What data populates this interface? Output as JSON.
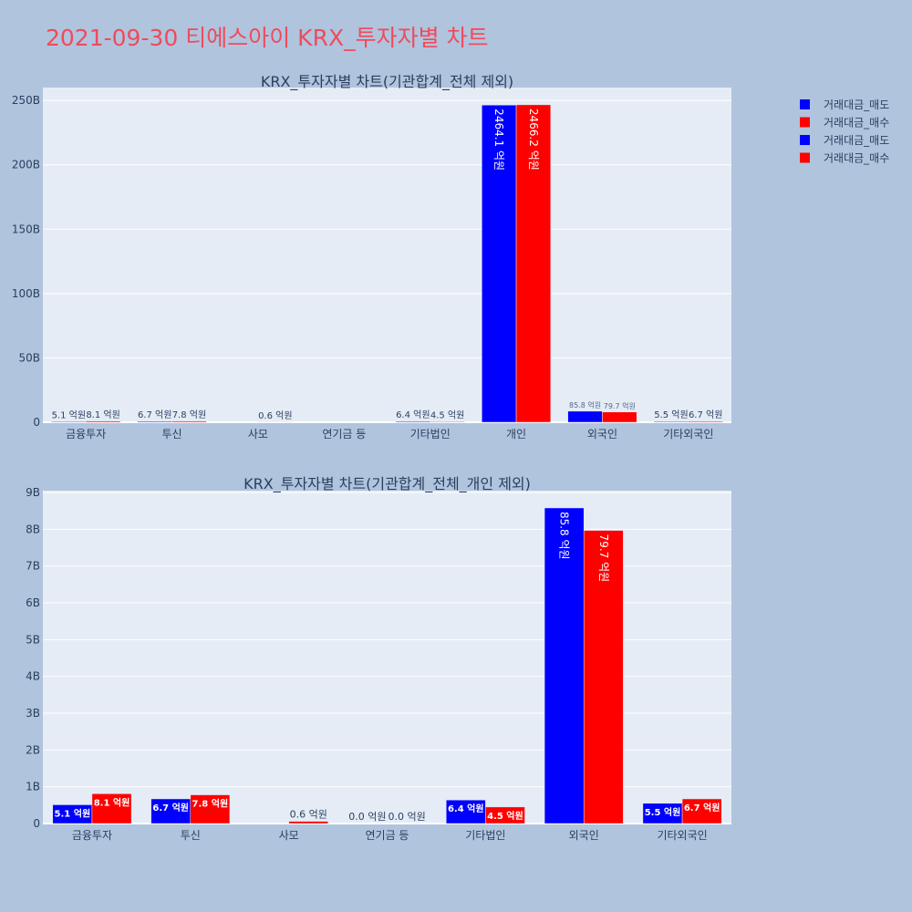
{
  "page": {
    "title": "2021-09-30 티에스아이 KRX_투자자별 차트"
  },
  "legend": {
    "placement": "top-right",
    "items": [
      {
        "label": "거래대금_매도",
        "color": "#0000ff"
      },
      {
        "label": "거래대금_매수",
        "color": "#ff0000"
      },
      {
        "label": "거래대금_매도",
        "color": "#0000ff"
      },
      {
        "label": "거래대금_매수",
        "color": "#ff0000"
      }
    ]
  },
  "chart_data": [
    {
      "type": "bar",
      "title": "KRX_투자자별 차트(기관합계_전체 제외)",
      "categories": [
        "금융투자",
        "투신",
        "사모",
        "연기금 등",
        "기타법인",
        "개인",
        "외국인",
        "기타외국인"
      ],
      "ylim": [
        0,
        260
      ],
      "yticks": [
        0,
        50,
        100,
        150,
        200,
        250
      ],
      "ytick_labels": [
        "0",
        "50B",
        "100B",
        "150B",
        "200B",
        "250B"
      ],
      "grid": true,
      "series": [
        {
          "name": "거래대금_매도",
          "color": "#0000ff",
          "values": [
            0.51,
            0.67,
            0,
            0,
            0.64,
            246.41,
            8.58,
            0.55
          ],
          "labels": [
            "5.1 억원",
            "6.7 억원",
            "",
            "",
            "6.4 억원",
            "2464.1 억원",
            "85.8 억원",
            "5.5 억원"
          ]
        },
        {
          "name": "거래대금_매수",
          "color": "#ff0000",
          "values": [
            0.81,
            0.78,
            0.06,
            0,
            0.45,
            246.62,
            7.97,
            0.67
          ],
          "labels": [
            "8.1 억원",
            "7.8 억원",
            "0.6 억원",
            "",
            "4.5 억원",
            "2466.2 억원",
            "79.7 억원",
            "6.7 억원"
          ]
        }
      ]
    },
    {
      "type": "bar",
      "title": "KRX_투자자별 차트(기관합계_전체_개인 제외)",
      "categories": [
        "금융투자",
        "투신",
        "사모",
        "연기금 등",
        "기타법인",
        "외국인",
        "기타외국인"
      ],
      "ylim": [
        0,
        9.05
      ],
      "yticks": [
        0,
        1,
        2,
        3,
        4,
        5,
        6,
        7,
        8,
        9
      ],
      "ytick_labels": [
        "0",
        "1B",
        "2B",
        "3B",
        "4B",
        "5B",
        "6B",
        "7B",
        "8B",
        "9B"
      ],
      "grid": true,
      "series": [
        {
          "name": "거래대금_매도",
          "color": "#0000ff",
          "values": [
            0.51,
            0.67,
            0,
            0,
            0.64,
            8.58,
            0.55
          ],
          "labels": [
            "5.1 억원",
            "6.7 억원",
            "",
            "0.0 억원",
            "6.4 억원",
            "85.8 억원",
            "5.5 억원"
          ]
        },
        {
          "name": "거래대금_매수",
          "color": "#ff0000",
          "values": [
            0.81,
            0.78,
            0.06,
            0,
            0.45,
            7.97,
            0.67
          ],
          "labels": [
            "8.1 억원",
            "7.8 억원",
            "0.6 억원",
            "0.0 억원",
            "4.5 억원",
            "79.7 억원",
            "6.7 억원"
          ]
        }
      ]
    }
  ]
}
